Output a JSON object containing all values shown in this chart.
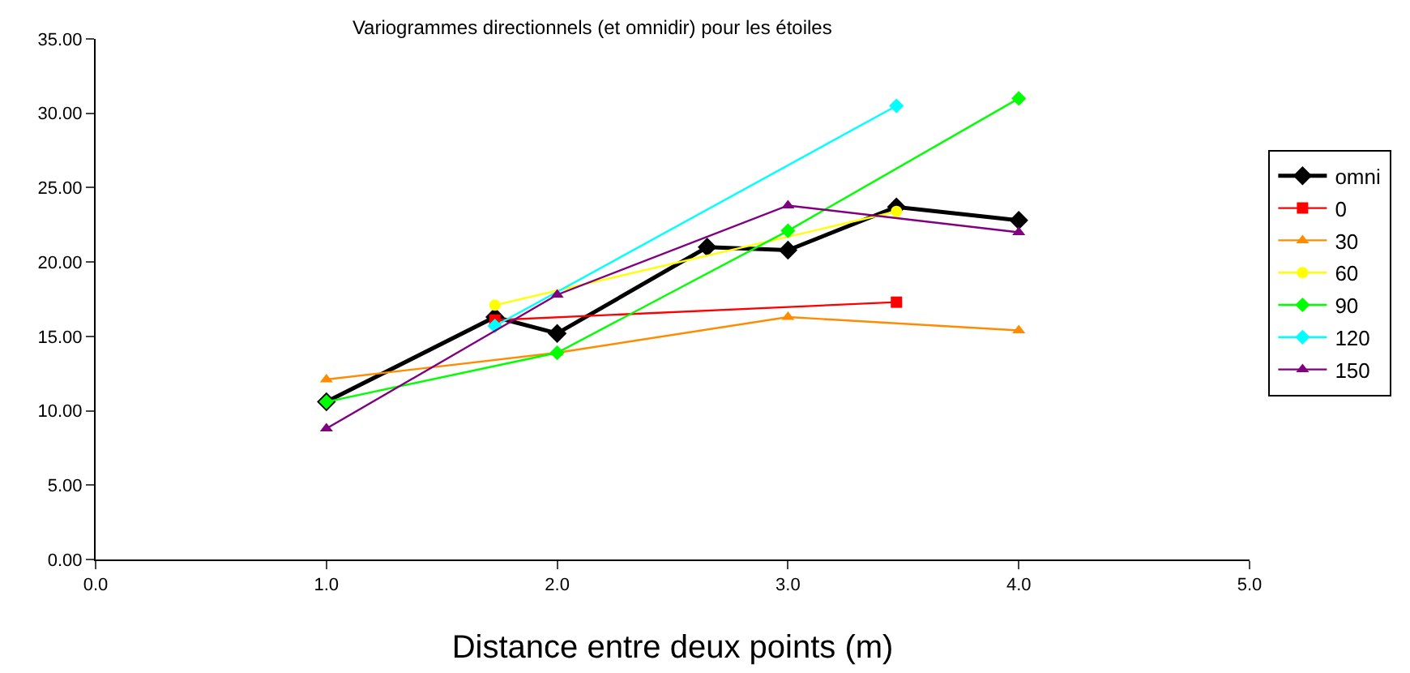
{
  "chart_data": {
    "type": "line",
    "title": "Variogrammes directionnels (et omnidir) pour les étoiles",
    "xlabel": "Distance entre deux points (m)",
    "xlim": [
      0,
      5
    ],
    "xticks": [
      {
        "value": 0,
        "label": "0.0"
      },
      {
        "value": 1,
        "label": "1.0"
      },
      {
        "value": 2,
        "label": "2.0"
      },
      {
        "value": 3,
        "label": "3.0"
      },
      {
        "value": 4,
        "label": "4.0"
      },
      {
        "value": 5,
        "label": "5.0"
      }
    ],
    "ylim": [
      0,
      35
    ],
    "yticks": [
      {
        "value": 0,
        "label": "0.00"
      },
      {
        "value": 5,
        "label": "5.00"
      },
      {
        "value": 10,
        "label": "10.00"
      },
      {
        "value": 15,
        "label": "15.00"
      },
      {
        "value": 20,
        "label": "20.00"
      },
      {
        "value": 25,
        "label": "25.00"
      },
      {
        "value": 30,
        "label": "30.00"
      },
      {
        "value": 35,
        "label": "35.00"
      }
    ],
    "grid": false,
    "legend": "right",
    "series": [
      {
        "name": "omni",
        "color": "#000000",
        "marker": "diamond",
        "x": [
          1.0,
          1.73,
          2.0,
          2.65,
          3.0,
          3.47,
          4.0
        ],
        "values": [
          10.6,
          16.3,
          15.2,
          21.0,
          20.8,
          23.7,
          22.8
        ]
      },
      {
        "name": "0",
        "color": "#ff0000",
        "marker": "square",
        "x": [
          1.73,
          3.47
        ],
        "values": [
          16.1,
          17.3
        ]
      },
      {
        "name": "30",
        "color": "#ff8c00",
        "marker": "triangle",
        "x": [
          1.0,
          2.0,
          3.0,
          4.0
        ],
        "values": [
          12.1,
          13.9,
          16.3,
          15.4
        ]
      },
      {
        "name": "60",
        "color": "#ffff00",
        "marker": "circle",
        "x": [
          1.73,
          3.47
        ],
        "values": [
          17.1,
          23.4
        ]
      },
      {
        "name": "90",
        "color": "#00ff00",
        "marker": "diamond",
        "x": [
          1.0,
          2.0,
          3.0,
          4.0
        ],
        "values": [
          10.6,
          13.9,
          22.1,
          31.0
        ]
      },
      {
        "name": "120",
        "color": "#00ffff",
        "marker": "diamond",
        "x": [
          1.73,
          3.47
        ],
        "values": [
          15.7,
          30.5
        ]
      },
      {
        "name": "150",
        "color": "#800080",
        "marker": "triangle",
        "x": [
          1.0,
          2.0,
          3.0,
          4.0
        ],
        "values": [
          8.8,
          17.8,
          23.8,
          22.0
        ]
      }
    ]
  }
}
